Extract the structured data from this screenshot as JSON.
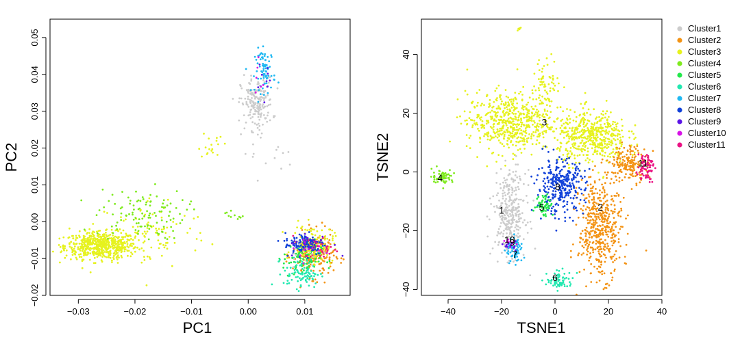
{
  "clusters": [
    {
      "name": "Cluster1",
      "color": "#cccccc"
    },
    {
      "name": "Cluster2",
      "color": "#f39314"
    },
    {
      "name": "Cluster3",
      "color": "#e6f21e"
    },
    {
      "name": "Cluster4",
      "color": "#7eea1c"
    },
    {
      "name": "Cluster5",
      "color": "#22e84a"
    },
    {
      "name": "Cluster6",
      "color": "#22e8b0"
    },
    {
      "name": "Cluster7",
      "color": "#1fb8f2"
    },
    {
      "name": "Cluster8",
      "color": "#1242d9"
    },
    {
      "name": "Cluster9",
      "color": "#5b14e6"
    },
    {
      "name": "Cluster10",
      "color": "#d610e6"
    },
    {
      "name": "Cluster11",
      "color": "#ea1284"
    }
  ],
  "chart_data": [
    {
      "type": "scatter",
      "xlabel": "PC1",
      "ylabel": "PC2",
      "xlim": [
        -0.035,
        0.018
      ],
      "ylim": [
        -0.02,
        0.055
      ],
      "xticks": [
        -0.03,
        -0.02,
        -0.01,
        0.0,
        0.01
      ],
      "xtick_labels": [
        "−0.03",
        "−0.02",
        "−0.01",
        "0.00",
        "0.01"
      ],
      "yticks": [
        -0.02,
        -0.01,
        0.0,
        0.01,
        0.02,
        0.03,
        0.04,
        0.05
      ],
      "ytick_labels": [
        "−0.02",
        "−0.01",
        "0.00",
        "0.01",
        "0.02",
        "0.03",
        "0.04",
        "0.05"
      ],
      "groups": [
        {
          "cluster": 3,
          "n": 600,
          "cx": -0.026,
          "cy": -0.0065,
          "sx": 0.0032,
          "sy": 0.0018
        },
        {
          "cluster": 3,
          "n": 90,
          "cx": -0.017,
          "cy": -0.003,
          "sx": 0.005,
          "sy": 0.005
        },
        {
          "cluster": 3,
          "n": 18,
          "cx": -0.0065,
          "cy": 0.021,
          "sx": 0.001,
          "sy": 0.002
        },
        {
          "cluster": 4,
          "n": 110,
          "cx": -0.019,
          "cy": 0.002,
          "sx": 0.004,
          "sy": 0.0035
        },
        {
          "cluster": 4,
          "n": 10,
          "cx": -0.0025,
          "cy": 0.002,
          "sx": 0.0008,
          "sy": 0.0008
        },
        {
          "cluster": 1,
          "n": 190,
          "cx": 0.0015,
          "cy": 0.032,
          "sx": 0.0014,
          "sy": 0.0035
        },
        {
          "cluster": 1,
          "n": 14,
          "cx": 0.003,
          "cy": 0.019,
          "sx": 0.0025,
          "sy": 0.003
        },
        {
          "cluster": 7,
          "n": 75,
          "cx": 0.003,
          "cy": 0.041,
          "sx": 0.0009,
          "sy": 0.003
        },
        {
          "cluster": 9,
          "n": 9,
          "cx": 0.0025,
          "cy": 0.037,
          "sx": 0.0008,
          "sy": 0.003
        },
        {
          "cluster": 10,
          "n": 6,
          "cx": 0.002,
          "cy": 0.04,
          "sx": 0.0008,
          "sy": 0.003
        },
        {
          "cluster": 2,
          "n": 230,
          "cx": 0.0115,
          "cy": -0.009,
          "sx": 0.0018,
          "sy": 0.003
        },
        {
          "cluster": 3,
          "n": 130,
          "cx": 0.0115,
          "cy": -0.006,
          "sx": 0.0018,
          "sy": 0.0025
        },
        {
          "cluster": 5,
          "n": 90,
          "cx": 0.0095,
          "cy": -0.01,
          "sx": 0.0017,
          "sy": 0.0025
        },
        {
          "cluster": 6,
          "n": 90,
          "cx": 0.0095,
          "cy": -0.014,
          "sx": 0.0016,
          "sy": 0.002
        },
        {
          "cluster": 8,
          "n": 110,
          "cx": 0.01,
          "cy": -0.006,
          "sx": 0.0018,
          "sy": 0.0015
        },
        {
          "cluster": 9,
          "n": 25,
          "cx": 0.011,
          "cy": -0.006,
          "sx": 0.002,
          "sy": 0.0015
        },
        {
          "cluster": 11,
          "n": 25,
          "cx": 0.013,
          "cy": -0.007,
          "sx": 0.0015,
          "sy": 0.0015
        },
        {
          "cluster": 10,
          "n": 12,
          "cx": 0.011,
          "cy": -0.008,
          "sx": 0.002,
          "sy": 0.002
        },
        {
          "cluster": 1,
          "n": 14,
          "cx": 0.01,
          "cy": -0.008,
          "sx": 0.002,
          "sy": 0.002
        }
      ]
    },
    {
      "type": "scatter",
      "xlabel": "TSNE1",
      "ylabel": "TSNE2",
      "xlim": [
        -50,
        40
      ],
      "ylim": [
        -42,
        52
      ],
      "xticks": [
        -40,
        -20,
        0,
        20,
        40
      ],
      "xtick_labels": [
        "−40",
        "−20",
        "0",
        "20",
        "40"
      ],
      "yticks": [
        -40,
        -20,
        0,
        20,
        40
      ],
      "ytick_labels": [
        "−40",
        "−20",
        "0",
        "20",
        "40"
      ],
      "groups": [
        {
          "cluster": 3,
          "n": 560,
          "cx": -17,
          "cy": 17,
          "sx": 8.0,
          "sy": 5.0
        },
        {
          "cluster": 3,
          "n": 70,
          "cx": -3,
          "cy": 30,
          "sx": 2.5,
          "sy": 4.5
        },
        {
          "cluster": 3,
          "n": 480,
          "cx": 14,
          "cy": 12,
          "sx": 6.5,
          "sy": 4.5
        },
        {
          "cluster": 3,
          "n": 6,
          "cx": -13.5,
          "cy": 48.5,
          "sx": 0.5,
          "sy": 0.3
        },
        {
          "cluster": 1,
          "n": 320,
          "cx": -17,
          "cy": -14,
          "sx": 3.0,
          "sy": 7.0
        },
        {
          "cluster": 2,
          "n": 480,
          "cx": 17,
          "cy": -19,
          "sx": 4.0,
          "sy": 8.5
        },
        {
          "cluster": 2,
          "n": 180,
          "cx": 28,
          "cy": 3,
          "sx": 3.5,
          "sy": 3.0
        },
        {
          "cluster": 11,
          "n": 70,
          "cx": 34,
          "cy": 2,
          "sx": 1.5,
          "sy": 2.5
        },
        {
          "cluster": 8,
          "n": 320,
          "cx": 2,
          "cy": -5,
          "sx": 4.5,
          "sy": 4.5
        },
        {
          "cluster": 5,
          "n": 55,
          "cx": -4,
          "cy": -11,
          "sx": 1.6,
          "sy": 2.0
        },
        {
          "cluster": 4,
          "n": 60,
          "cx": -42,
          "cy": -1.5,
          "sx": 2.0,
          "sy": 1.2
        },
        {
          "cluster": 6,
          "n": 70,
          "cx": 2,
          "cy": -37,
          "sx": 2.5,
          "sy": 1.5
        },
        {
          "cluster": 7,
          "n": 70,
          "cx": -15,
          "cy": -27,
          "sx": 1.6,
          "sy": 2.2
        },
        {
          "cluster": 10,
          "n": 12,
          "cx": -16,
          "cy": -24,
          "sx": 1.0,
          "sy": 0.6
        },
        {
          "cluster": 9,
          "n": 14,
          "cx": -17,
          "cy": -25,
          "sx": 1.2,
          "sy": 0.7
        }
      ],
      "cluster_labels": [
        {
          "text": "1",
          "x": -20,
          "y": -13
        },
        {
          "text": "2",
          "x": 17,
          "y": -12
        },
        {
          "text": "3",
          "x": -4,
          "y": 17
        },
        {
          "text": "4",
          "x": -43,
          "y": -2
        },
        {
          "text": "5",
          "x": -5,
          "y": -12
        },
        {
          "text": "6",
          "x": 0,
          "y": -36
        },
        {
          "text": "7",
          "x": -15,
          "y": -28
        },
        {
          "text": "8",
          "x": 1,
          "y": -5
        },
        {
          "text": "9",
          "x": -16,
          "y": -24
        },
        {
          "text": "10",
          "x": -17,
          "y": -23
        },
        {
          "text": "11",
          "x": 33,
          "y": 3
        }
      ]
    }
  ]
}
